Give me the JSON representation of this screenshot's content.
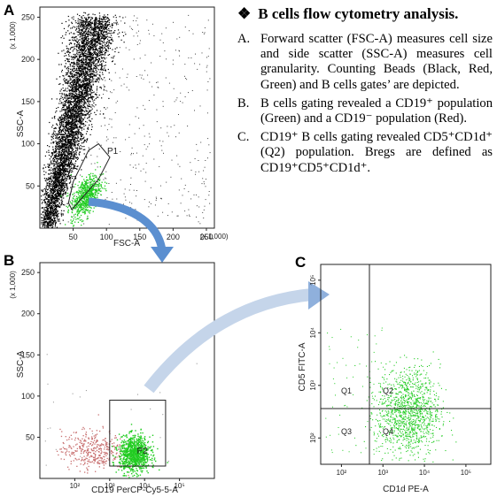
{
  "panel_labels": {
    "a": "A",
    "b": "B",
    "c": "C"
  },
  "text": {
    "heading_marker": "❖",
    "heading": "B cells flow cytometry analysis.",
    "items": [
      {
        "label": "A.",
        "text": "Forward scatter (FSC-A) measures cell size and side scatter (SSC-A) measures cell granularity. Counting Beads (Black, Red, Green) and B cells gates’ are depicted."
      },
      {
        "label": "B.",
        "text": "B cells gating revealed a CD19⁺ population (Green) and a CD19⁻ population (Red)."
      },
      {
        "label": "C.",
        "text": "CD19⁺ B cells gating revealed CD5⁺CD1d⁺ (Q2) population. Bregs are defined as CD19⁺CD5⁺CD1d⁺."
      }
    ]
  },
  "colors": {
    "black_events": "#000000",
    "red_events": "#c87070",
    "green_events": "#22cc22",
    "arrow": "#5b8fd0",
    "arrow_light": "#c5d5ea"
  },
  "chart_data": [
    {
      "panel": "A",
      "type": "scatter",
      "xlabel": "FSC-A",
      "ylabel": "SSC-A",
      "x_scale_label": "(x 1,000)",
      "y_scale_label": "(x 1,000)",
      "xlim": [
        0,
        262
      ],
      "ylim": [
        0,
        262
      ],
      "x_ticks": [
        50,
        100,
        150,
        200,
        250
      ],
      "y_ticks": [
        50,
        100,
        150,
        200,
        250
      ],
      "gate": {
        "name": "P1",
        "polygon": [
          [
            48,
            22
          ],
          [
            88,
            58
          ],
          [
            105,
            84
          ],
          [
            88,
            100
          ],
          [
            73,
            92
          ],
          [
            50,
            55
          ],
          [
            43,
            30
          ]
        ]
      },
      "series": [
        {
          "color": "black",
          "description_points": [
            [
              20,
              20
            ],
            [
              40,
              90
            ],
            [
              60,
              160
            ],
            [
              80,
              220
            ],
            [
              30,
              60
            ]
          ]
        },
        {
          "color": "green",
          "description_points": [
            [
              60,
              40
            ],
            [
              75,
              55
            ],
            [
              85,
              65
            ]
          ]
        }
      ]
    },
    {
      "panel": "B",
      "type": "scatter",
      "xlabel": "CD19 PerCP-Cy5-5-A",
      "ylabel": "SSC-A",
      "y_scale_label": "(x 1,000)",
      "x_scale": "log",
      "ylim": [
        0,
        262
      ],
      "xlim": [
        10,
        1000000
      ],
      "x_ticks": [
        "10²",
        "10³",
        "10⁴",
        "10⁵"
      ],
      "y_ticks": [
        50,
        100,
        150,
        200,
        250
      ],
      "gate": {
        "name": "P2",
        "x_range": [
          1000,
          40000
        ],
        "y_range": [
          0,
          95
        ]
      },
      "series": [
        {
          "color": "red",
          "x_log_center": 2.5,
          "y_center": 35
        },
        {
          "color": "green",
          "x_log_center": 3.7,
          "y_center": 30
        }
      ]
    },
    {
      "panel": "C",
      "type": "scatter",
      "xlabel": "CD1d PE-A",
      "ylabel": "CD5 FITC-A",
      "x_scale": "log",
      "y_scale": "log",
      "x_ticks": [
        "10²",
        "10³",
        "10⁴",
        "10⁵"
      ],
      "y_ticks": [
        "10²",
        "10³",
        "10⁴",
        "10⁵"
      ],
      "quadrants": [
        "Q1",
        "Q2",
        "Q3",
        "Q4"
      ],
      "quadrant_lines": {
        "x_log": 3.0,
        "y_log": 2.7
      },
      "series": [
        {
          "color": "green",
          "x_log_center": 3.6,
          "y_log_center": 2.5
        }
      ]
    }
  ]
}
